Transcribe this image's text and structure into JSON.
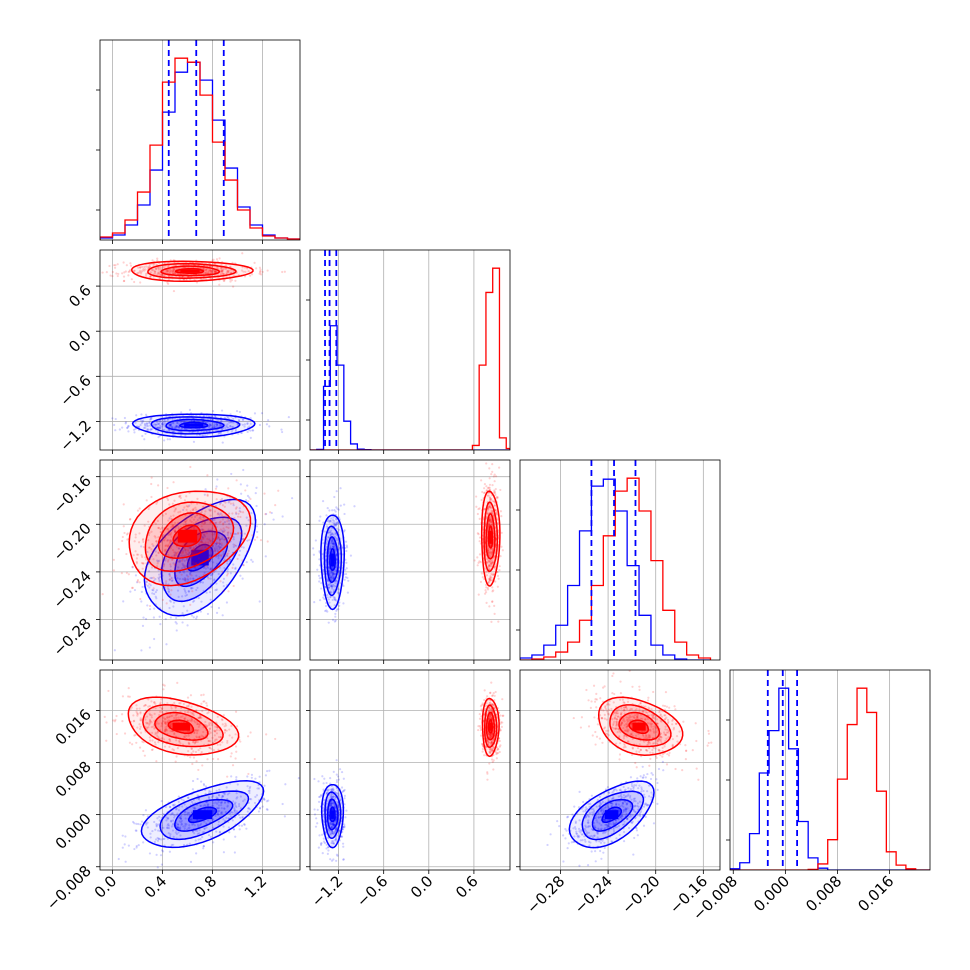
{
  "chart_data": {
    "type": "corner",
    "grid": true,
    "series": [
      {
        "name": "",
        "color": "#0000ff"
      },
      {
        "name": "",
        "color": "#ff0000"
      }
    ],
    "params": [
      {
        "range": [
          -0.1,
          1.5
        ],
        "ticks": [
          0.0,
          0.4,
          0.8,
          1.2
        ],
        "tick_labels": [
          "0.0",
          "0.4",
          "0.8",
          "1.2"
        ]
      },
      {
        "range": [
          -1.58,
          1.08
        ],
        "ticks": [
          -1.2,
          -0.6,
          0.0,
          0.6
        ],
        "tick_labels": [
          "−1.2",
          "−0.6",
          "0.0",
          "0.6"
        ]
      },
      {
        "range": [
          -0.314,
          -0.146
        ],
        "ticks": [
          -0.28,
          -0.24,
          -0.2,
          -0.16
        ],
        "tick_labels": [
          "−0.28",
          "−0.24",
          "−0.20",
          "−0.16"
        ]
      },
      {
        "range": [
          -0.0085,
          0.0222
        ],
        "ticks": [
          -0.008,
          0.0,
          0.008,
          0.016
        ],
        "tick_labels": [
          "−0.008",
          "0.000",
          "0.008",
          "0.016"
        ]
      }
    ],
    "quantile_lines": [
      {
        "param": 0,
        "values": [
          0.45,
          0.67,
          0.89
        ]
      },
      {
        "param": 1,
        "values": [
          -1.38,
          -1.32,
          -1.23
        ]
      },
      {
        "param": 2,
        "values": [
          -0.254,
          -0.235,
          -0.217
        ]
      },
      {
        "param": 3,
        "values": [
          -0.0027,
          -0.0004,
          0.0018
        ]
      }
    ],
    "marginals": [
      {
        "param": 0,
        "bin_edges": [
          -0.1,
          0.0,
          0.1,
          0.2,
          0.3,
          0.4,
          0.5,
          0.6,
          0.7,
          0.8,
          0.9,
          1.0,
          1.1,
          1.2,
          1.3,
          1.4,
          1.5
        ],
        "series": [
          {
            "name": "",
            "color": "#0000ff",
            "counts": [
              2,
              5,
              15,
              35,
              70,
              128,
              168,
              178,
              160,
              120,
              72,
              33,
              15,
              5,
              2,
              1
            ]
          },
          {
            "name": "",
            "color": "#ff0000",
            "counts": [
              3,
              7,
              20,
              48,
              95,
              158,
              182,
              178,
              145,
              98,
              60,
              30,
              12,
              4,
              2,
              1
            ]
          }
        ]
      },
      {
        "param": 1,
        "bin_edges": [
          -1.58,
          -1.49,
          -1.4,
          -1.31,
          -1.22,
          -1.13,
          -1.04,
          -0.95,
          -0.86,
          -0.77,
          -0.68,
          -0.59,
          -0.5,
          -0.41,
          -0.32,
          -0.23,
          -0.14,
          -0.05,
          0.04,
          0.13,
          0.22,
          0.31,
          0.4,
          0.49,
          0.58,
          0.67,
          0.76,
          0.85,
          0.94,
          1.03,
          1.08
        ],
        "series": [
          {
            "name": "",
            "color": "#0000ff",
            "counts": [
              0,
              2,
              210,
              410,
              280,
              95,
              20,
              3,
              1,
              0,
              0,
              0,
              0,
              0,
              0,
              0,
              0,
              0,
              0,
              0,
              0,
              0,
              0,
              0,
              0,
              0,
              0,
              0,
              0,
              0
            ]
          },
          {
            "name": "",
            "color": "#ff0000",
            "counts": [
              0,
              0,
              0,
              0,
              0,
              0,
              0,
              0,
              0,
              0,
              0,
              0,
              0,
              0,
              0,
              0,
              0,
              0,
              0,
              0,
              0,
              0,
              0,
              0,
              15,
              280,
              520,
              600,
              40,
              5
            ]
          }
        ]
      },
      {
        "param": 2,
        "bin_edges": [
          -0.314,
          -0.304,
          -0.294,
          -0.284,
          -0.274,
          -0.264,
          -0.254,
          -0.244,
          -0.234,
          -0.224,
          -0.214,
          -0.204,
          -0.194,
          -0.184,
          -0.174,
          -0.164,
          -0.154
        ],
        "series": [
          {
            "name": "",
            "color": "#0000ff",
            "counts": [
              2,
              5,
              15,
              35,
              75,
              130,
              175,
              182,
              150,
              95,
              45,
              15,
              5,
              1,
              0,
              0
            ]
          },
          {
            "name": "",
            "color": "#ff0000",
            "counts": [
              0,
              1,
              3,
              8,
              18,
              40,
              75,
              125,
              170,
              183,
              150,
              100,
              50,
              18,
              5,
              2
            ]
          }
        ]
      },
      {
        "param": 3,
        "bin_edges": [
          -0.0085,
          -0.007,
          -0.0055,
          -0.004,
          -0.0025,
          -0.001,
          0.0005,
          0.002,
          0.0035,
          0.005,
          0.0065,
          0.008,
          0.0095,
          0.011,
          0.0125,
          0.014,
          0.0155,
          0.017,
          0.0185,
          0.02,
          0.0222
        ],
        "series": [
          {
            "name": "",
            "color": "#0000ff",
            "counts": [
              2,
              12,
              60,
              160,
              230,
              300,
              200,
              80,
              20,
              3,
              0,
              0,
              0,
              0,
              0,
              0,
              0,
              0,
              0,
              0
            ]
          },
          {
            "name": "",
            "color": "#ff0000",
            "counts": [
              0,
              0,
              0,
              0,
              0,
              0,
              0,
              0,
              1,
              10,
              50,
              150,
              240,
              300,
              260,
              130,
              30,
              8,
              2,
              0
            ]
          }
        ]
      }
    ],
    "panels": [
      {
        "row": 1,
        "col": 0,
        "series": [
          {
            "name": "",
            "color": "#0000ff",
            "center": [
              0.65,
              -1.25
            ],
            "sigma": [
              0.22,
              0.07
            ],
            "rho": 0.0
          },
          {
            "name": "",
            "color": "#ff0000",
            "center": [
              0.62,
              0.8
            ],
            "sigma": [
              0.22,
              0.06
            ],
            "rho": 0.0
          }
        ]
      },
      {
        "row": 2,
        "col": 0,
        "series": [
          {
            "name": "",
            "color": "#0000ff",
            "center": [
              0.7,
              -0.228
            ],
            "sigma": [
              0.2,
              0.022
            ],
            "rho": 0.5
          },
          {
            "name": "",
            "color": "#ff0000",
            "center": [
              0.6,
              -0.21
            ],
            "sigma": [
              0.22,
              0.018
            ],
            "rho": 0.25
          }
        ]
      },
      {
        "row": 2,
        "col": 1,
        "series": [
          {
            "name": "",
            "color": "#0000ff",
            "center": [
              -1.28,
              -0.23
            ],
            "sigma": [
              0.07,
              0.018
            ],
            "rho": 0.0
          },
          {
            "name": "",
            "color": "#ff0000",
            "center": [
              0.82,
              -0.211
            ],
            "sigma": [
              0.055,
              0.018
            ],
            "rho": 0.0
          }
        ]
      },
      {
        "row": 3,
        "col": 0,
        "series": [
          {
            "name": "",
            "color": "#0000ff",
            "center": [
              0.72,
              0.0
            ],
            "sigma": [
              0.22,
              0.0023
            ],
            "rho": 0.6
          },
          {
            "name": "",
            "color": "#ff0000",
            "center": [
              0.55,
              0.0135
            ],
            "sigma": [
              0.2,
              0.002
            ],
            "rho": -0.35
          }
        ]
      },
      {
        "row": 3,
        "col": 1,
        "series": [
          {
            "name": "",
            "color": "#0000ff",
            "center": [
              -1.28,
              0.0
            ],
            "sigma": [
              0.065,
              0.0022
            ],
            "rho": 0.0
          },
          {
            "name": "",
            "color": "#ff0000",
            "center": [
              0.82,
              0.0135
            ],
            "sigma": [
              0.05,
              0.002
            ],
            "rho": 0.0
          }
        ]
      },
      {
        "row": 3,
        "col": 2,
        "series": [
          {
            "name": "",
            "color": "#0000ff",
            "center": [
              -0.237,
              0.0
            ],
            "sigma": [
              0.016,
              0.0023
            ],
            "rho": 0.55
          },
          {
            "name": "",
            "color": "#ff0000",
            "center": [
              -0.214,
              0.0135
            ],
            "sigma": [
              0.016,
              0.002
            ],
            "rho": -0.3
          }
        ]
      }
    ]
  }
}
